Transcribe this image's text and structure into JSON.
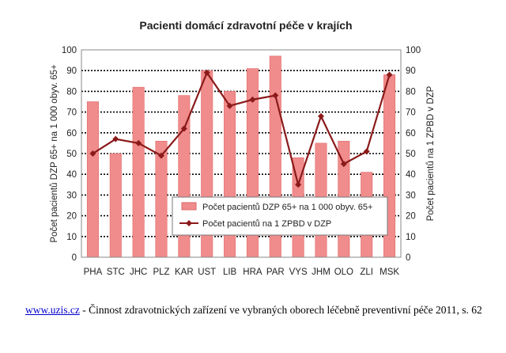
{
  "chart_data": {
    "type": "bar",
    "title": "Pacienti domácí zdravotní péče v krajích",
    "categories": [
      "PHA",
      "STC",
      "JHC",
      "PLZ",
      "KAR",
      "UST",
      "LIB",
      "HRA",
      "PAR",
      "VYS",
      "JHM",
      "OLO",
      "ZLI",
      "MSK"
    ],
    "series": [
      {
        "name": "Počet pacientů DZP 65+ na 1 000 obyv. 65+",
        "type": "bar",
        "axis": "left",
        "color": "#f08c8c",
        "values": [
          75,
          50,
          82,
          56,
          78,
          90,
          80,
          91,
          97,
          48,
          55,
          56,
          41,
          88
        ]
      },
      {
        "name": "Počet pacientů na 1 ZPBD v DZP",
        "type": "line",
        "axis": "right",
        "color": "#8b1a1a",
        "values": [
          50,
          57,
          55,
          49,
          62,
          89,
          73,
          76,
          78,
          35,
          68,
          45,
          51,
          88
        ]
      }
    ],
    "ylabel": "Počet pacientů DZP 65+ na 1 000 obyv. 65+",
    "y2label": "Počet pacientů na 1 ZPBD v DZP",
    "ylim": [
      0,
      100
    ],
    "y2lim": [
      0,
      100
    ],
    "yticks": [
      0,
      10,
      20,
      30,
      40,
      50,
      60,
      70,
      80,
      90,
      100
    ],
    "grid": true,
    "legend": "center-bottom"
  },
  "caption": {
    "link_text": "www.uzis.cz",
    "text": " - Činnost zdravotnických zařízení ve vybraných oborech léčebně preventivní péče 2011, s. 62"
  }
}
